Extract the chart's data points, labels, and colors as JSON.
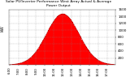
{
  "title": "Solar PV/Inverter Performance West Array Actual & Average Power Output",
  "background_color": "#ffffff",
  "plot_bg_color": "#ffffff",
  "bar_color": "#ff0000",
  "line_color": "#aa0000",
  "grid_color": "#888888",
  "ylim": [
    0,
    1600
  ],
  "yticks": [
    200,
    400,
    600,
    800,
    1000,
    1200,
    1400,
    1600
  ],
  "num_points": 144,
  "peak_value": 1480,
  "peak_index": 72,
  "sigma": 22.0,
  "left_label": "kW"
}
